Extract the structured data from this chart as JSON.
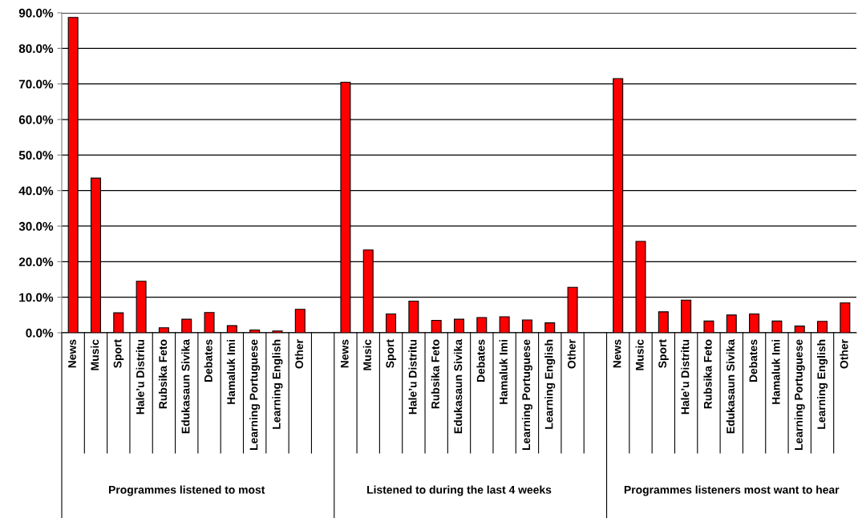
{
  "chart_data": {
    "type": "bar",
    "categories": [
      "News",
      "Music",
      "Sport",
      "Hale’u Distritu",
      "Rubsika Feto",
      "Edukasaun Sivika",
      "Debates",
      "Hamaluk Imi",
      "Learning Portuguese",
      "Learning English",
      "Other",
      null,
      "News",
      "Music",
      "Sport",
      "Hale’u Distritu",
      "Rubsika Feto",
      "Edukasaun Sivika",
      "Debates",
      "Hamaluk Imi",
      "Learning Portuguese",
      "Learning English",
      "Other",
      null,
      "News",
      "Music",
      "Sport",
      "Hale’u Distritu",
      "Rubsika Feto",
      "Edukasaun Sivika",
      "Debates",
      "Hamaluk Imi",
      "Learning Portuguese",
      "Learning English",
      "Other"
    ],
    "values": [
      88.7,
      43.5,
      5.6,
      14.5,
      1.4,
      3.8,
      5.7,
      2.0,
      0.8,
      0.5,
      6.6,
      null,
      70.5,
      23.3,
      5.3,
      8.9,
      3.5,
      3.8,
      4.3,
      4.5,
      3.6,
      2.8,
      12.8,
      null,
      71.5,
      25.7,
      5.9,
      9.2,
      3.3,
      5.0,
      5.3,
      3.3,
      1.9,
      3.2,
      8.4
    ],
    "color": "#ff0000",
    "ylim": [
      0,
      90
    ],
    "yticks": [
      {
        "value": 0,
        "label": "0.0%"
      },
      {
        "value": 10,
        "label": "10.0%"
      },
      {
        "value": 20,
        "label": "20.0%"
      },
      {
        "value": 30,
        "label": "30.0%"
      },
      {
        "value": 40,
        "label": "40.0%"
      },
      {
        "value": 50,
        "label": "50.0%"
      },
      {
        "value": 60,
        "label": "60.0%"
      },
      {
        "value": 70,
        "label": "70.0%"
      },
      {
        "value": 80,
        "label": "80.0%"
      },
      {
        "value": 90,
        "label": "90.0%"
      }
    ],
    "grid": "y",
    "annotations": [
      "Programmes listened to most",
      "Listened to during the last 4 weeks",
      "Programmes listeners most want to hear"
    ]
  }
}
